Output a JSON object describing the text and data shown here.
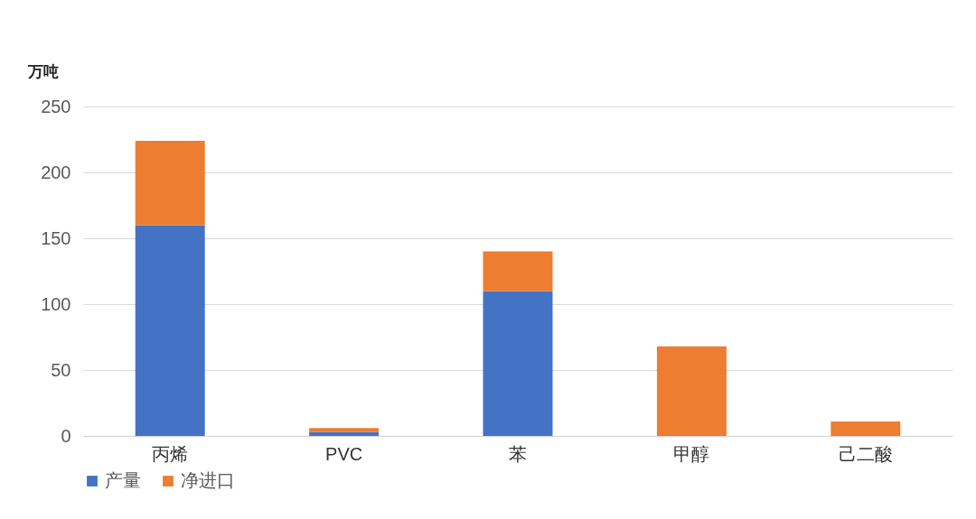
{
  "chart_data": {
    "type": "bar",
    "ylabel": "万吨",
    "categories": [
      "丙烯",
      "PVC",
      "苯",
      "甲醇",
      "己二酸"
    ],
    "stacked": true,
    "series": [
      {
        "name": "产量",
        "color": "#4472c4",
        "values": [
          160,
          3,
          110,
          0,
          0
        ]
      },
      {
        "name": "净进口",
        "color": "#ed7d31",
        "values": [
          64,
          3,
          30,
          68,
          11
        ]
      }
    ],
    "ylim": [
      0,
      250
    ],
    "yticks": [
      0,
      50,
      100,
      150,
      200,
      250
    ],
    "grid": "y",
    "legend": "bottom"
  }
}
